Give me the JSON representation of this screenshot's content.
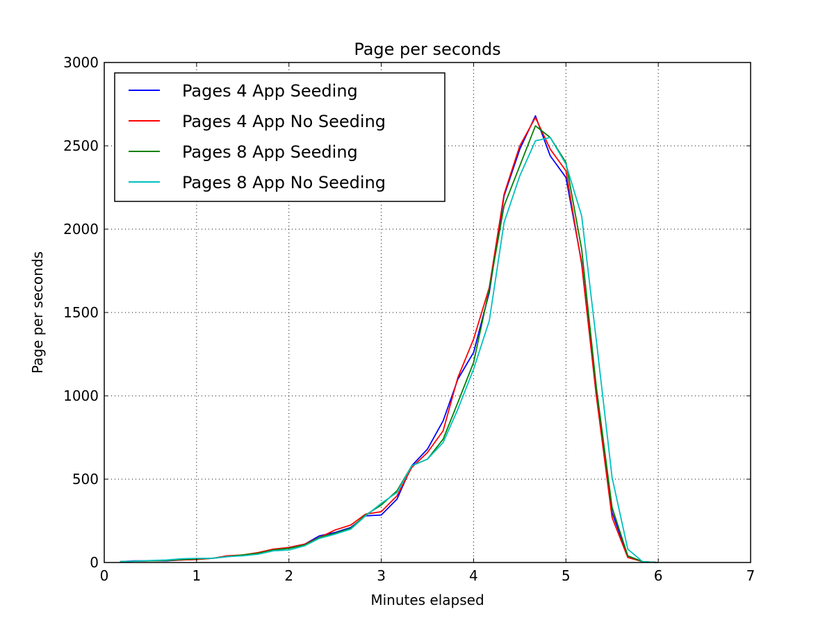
{
  "chart_data": {
    "type": "line",
    "title": "Page per seconds",
    "xlabel": "Minutes elapsed",
    "ylabel": "Page per seconds",
    "xlim": [
      0,
      7
    ],
    "ylim": [
      0,
      3000
    ],
    "xticks": [
      0,
      1,
      2,
      3,
      4,
      5,
      6,
      7
    ],
    "yticks": [
      0,
      500,
      1000,
      1500,
      2000,
      2500,
      3000
    ],
    "grid": true,
    "legend_position": "top-left",
    "x": [
      0.17,
      0.33,
      0.5,
      0.67,
      0.83,
      1.0,
      1.17,
      1.33,
      1.5,
      1.67,
      1.83,
      2.0,
      2.17,
      2.33,
      2.5,
      2.67,
      2.83,
      3.0,
      3.17,
      3.33,
      3.5,
      3.67,
      3.83,
      4.0,
      4.17,
      4.33,
      4.5,
      4.67,
      4.83,
      5.0,
      5.17,
      5.33,
      5.5,
      5.67,
      5.83,
      6.0
    ],
    "series": [
      {
        "name": "Pages 4 App Seeding",
        "color": "#0000ff",
        "values": [
          5,
          10,
          10,
          10,
          15,
          20,
          25,
          35,
          45,
          55,
          75,
          90,
          110,
          160,
          180,
          210,
          280,
          285,
          380,
          580,
          680,
          850,
          1100,
          1260,
          1620,
          2200,
          2480,
          2680,
          2440,
          2310,
          1800,
          1000,
          300,
          40,
          5,
          0
        ]
      },
      {
        "name": "Pages 4 App No Seeding",
        "color": "#ff0000",
        "values": [
          5,
          8,
          10,
          12,
          15,
          18,
          25,
          40,
          45,
          60,
          80,
          90,
          110,
          150,
          195,
          225,
          290,
          305,
          400,
          570,
          660,
          790,
          1110,
          1340,
          1650,
          2210,
          2500,
          2670,
          2480,
          2350,
          1790,
          1000,
          270,
          30,
          5,
          0
        ]
      },
      {
        "name": "Pages 8 App Seeding",
        "color": "#008000",
        "values": [
          5,
          8,
          10,
          12,
          18,
          22,
          25,
          35,
          45,
          55,
          75,
          85,
          105,
          150,
          175,
          205,
          285,
          345,
          430,
          580,
          620,
          740,
          960,
          1200,
          1640,
          2140,
          2380,
          2620,
          2550,
          2400,
          1880,
          1050,
          330,
          40,
          5,
          0
        ]
      },
      {
        "name": "Pages 8 App No Seeding",
        "color": "#00bfbf",
        "values": [
          5,
          8,
          12,
          15,
          22,
          25,
          25,
          35,
          40,
          50,
          70,
          75,
          100,
          145,
          170,
          200,
          280,
          355,
          420,
          580,
          620,
          720,
          920,
          1160,
          1450,
          2040,
          2320,
          2530,
          2550,
          2390,
          2080,
          1330,
          510,
          80,
          5,
          0
        ]
      }
    ]
  }
}
